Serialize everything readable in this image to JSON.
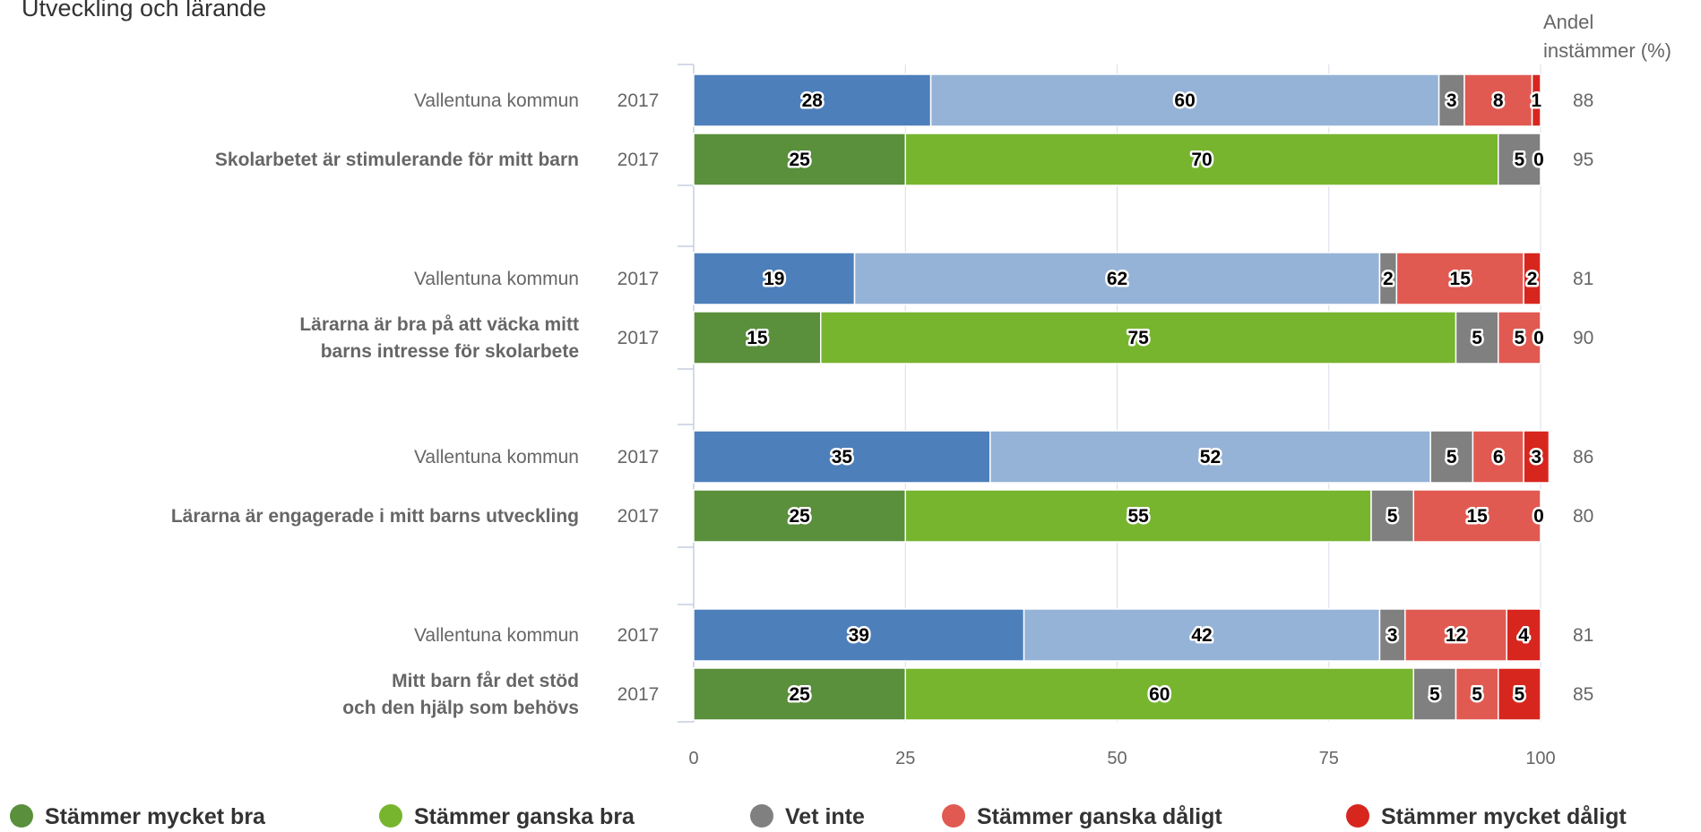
{
  "chart_data": {
    "type": "bar",
    "orientation": "horizontal",
    "stacked": true,
    "title": "Utveckling och lärande",
    "share_header": [
      "Andel",
      "instämmer (%)"
    ],
    "xlim": [
      0,
      100
    ],
    "xticks": [
      "0",
      "25",
      "50",
      "75",
      "100"
    ],
    "grid": true,
    "legend_position": "bottom",
    "series": [
      {
        "name": "Stämmer mycket bra"
      },
      {
        "name": "Stämmer ganska bra"
      },
      {
        "name": "Vet inte"
      },
      {
        "name": "Stämmer ganska dåligt"
      },
      {
        "name": "Stämmer mycket dåligt"
      }
    ],
    "groups": [
      {
        "question_lines": [
          "Skolarbetet är stimulerande för mitt barn"
        ],
        "rows": [
          {
            "label": "Vallentuna kommun",
            "year": "2017",
            "values": [
              28,
              60,
              3,
              8,
              1
            ],
            "share": "88",
            "palette": "municipality"
          },
          {
            "label": "",
            "year": "2017",
            "values": [
              25,
              70,
              5,
              0,
              0
            ],
            "share": "95",
            "palette": "school"
          }
        ]
      },
      {
        "question_lines": [
          "Lärarna är bra på att väcka mitt",
          "barns intresse för skolarbete"
        ],
        "rows": [
          {
            "label": "Vallentuna kommun",
            "year": "2017",
            "values": [
              19,
              62,
              2,
              15,
              2
            ],
            "share": "81",
            "palette": "municipality"
          },
          {
            "label": "",
            "year": "2017",
            "values": [
              15,
              75,
              5,
              5,
              0
            ],
            "share": "90",
            "palette": "school"
          }
        ]
      },
      {
        "question_lines": [
          "Lärarna är engagerade i mitt barns utveckling"
        ],
        "rows": [
          {
            "label": "Vallentuna kommun",
            "year": "2017",
            "values": [
              35,
              52,
              5,
              6,
              3
            ],
            "share": "86",
            "palette": "municipality"
          },
          {
            "label": "",
            "year": "2017",
            "values": [
              25,
              55,
              5,
              15,
              0
            ],
            "share": "80",
            "palette": "school"
          }
        ]
      },
      {
        "question_lines": [
          "Mitt barn får det stöd",
          "och den hjälp som behövs"
        ],
        "rows": [
          {
            "label": "Vallentuna kommun",
            "year": "2017",
            "values": [
              39,
              42,
              3,
              12,
              4
            ],
            "share": "81",
            "palette": "municipality"
          },
          {
            "label": "",
            "year": "2017",
            "values": [
              25,
              60,
              5,
              5,
              5
            ],
            "share": "85",
            "palette": "school"
          }
        ]
      }
    ]
  },
  "colors": {
    "municipality": [
      "#4d7fbb",
      "#95b3d7",
      "#808080",
      "#e15a52",
      "#d7261e"
    ],
    "school": [
      "#5a8f3c",
      "#77b52f",
      "#808080",
      "#e15a52",
      "#d7261e"
    ],
    "legend": [
      "#5a8f3c",
      "#77b52f",
      "#808080",
      "#e15a52",
      "#d7261e"
    ],
    "grid": "#d9dde6",
    "axis": "#c5cee0"
  }
}
